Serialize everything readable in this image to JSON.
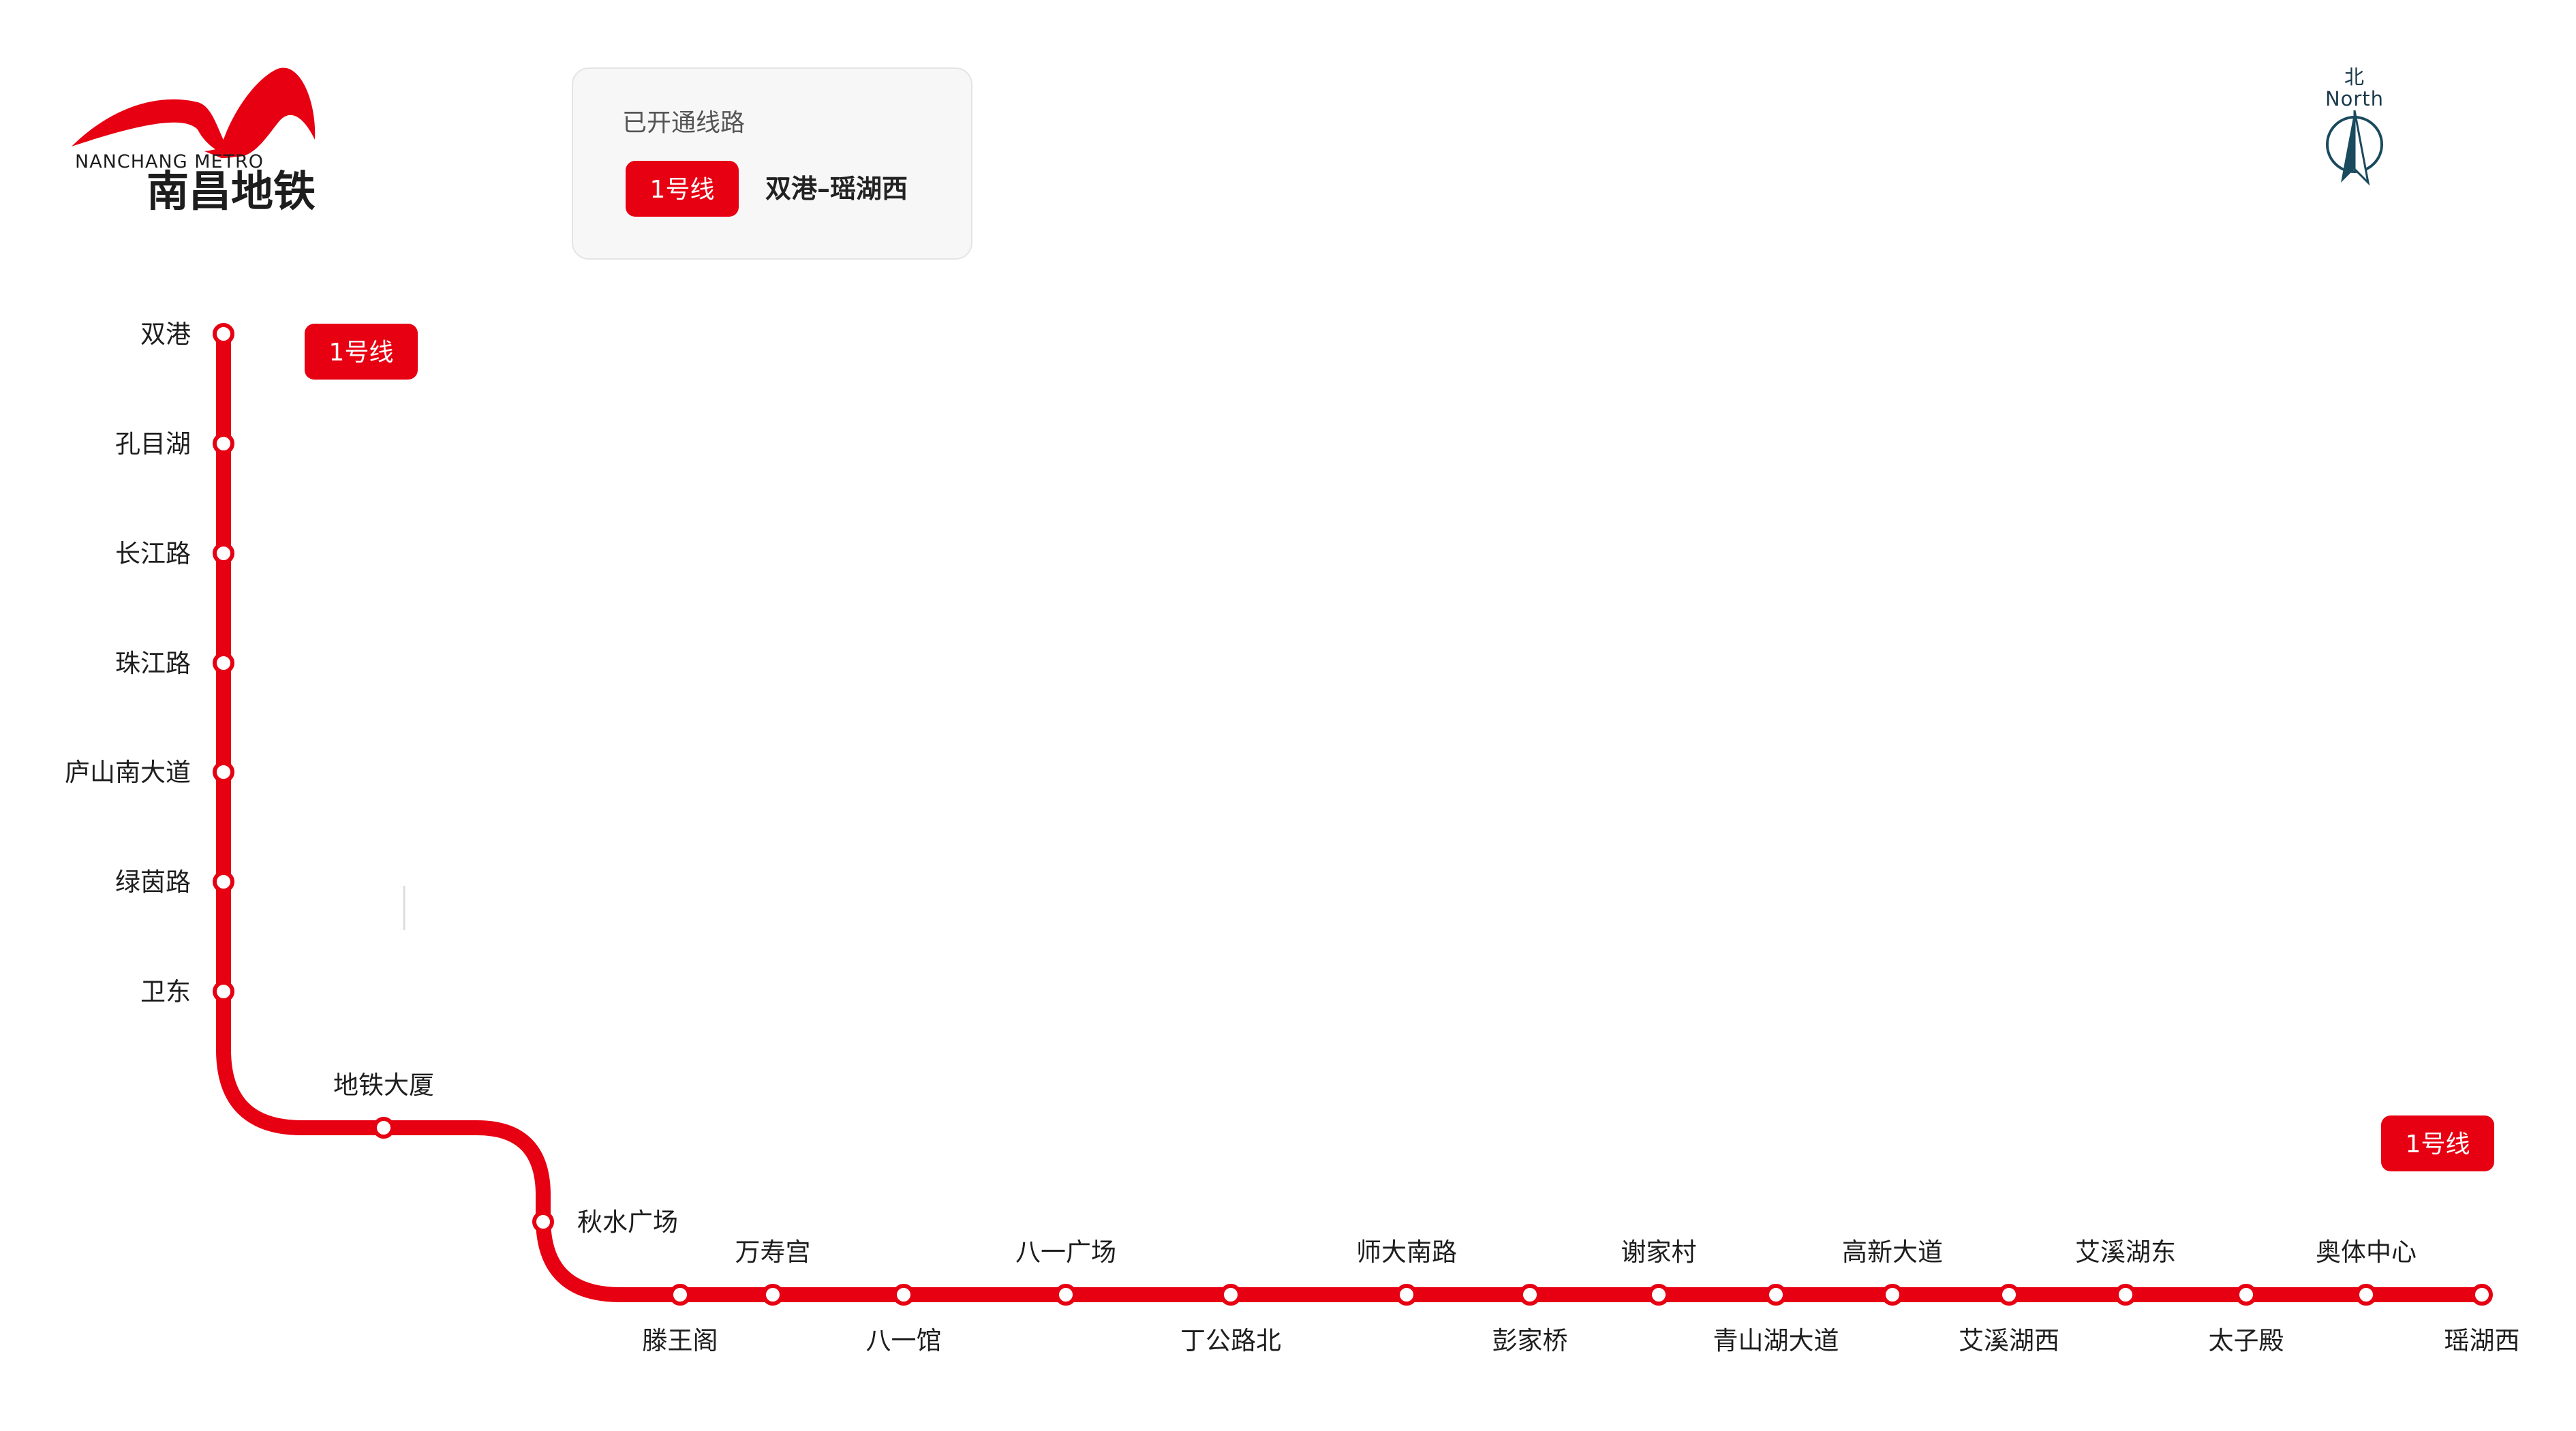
{
  "brand": {
    "name_en": "NANCHANG METRO",
    "name_cn": "南昌地铁",
    "color": "#e60012"
  },
  "legend": {
    "title": "已开通线路",
    "lines": [
      {
        "badge": "1号线",
        "route": "双港–瑶湖西",
        "color": "#e60012"
      }
    ]
  },
  "compass": {
    "label_cn": "北",
    "label_en": "North",
    "icon": "north-arrow-icon",
    "color": "#1a4a5e"
  },
  "line": {
    "name": "1号线",
    "color": "#e60012",
    "start_badge": "1号线",
    "end_badge": "1号线",
    "stations": [
      "双港",
      "孔目湖",
      "长江路",
      "珠江路",
      "庐山南大道",
      "绿茵路",
      "卫东",
      "地铁大厦",
      "秋水广场",
      "滕王阁",
      "万寿宫",
      "八一馆",
      "八一广场",
      "丁公路北",
      "师大南路",
      "彭家桥",
      "谢家村",
      "青山湖大道",
      "高新大道",
      "艾溪湖西",
      "艾溪湖东",
      "太子殿",
      "奥体中心",
      "瑶湖西"
    ]
  }
}
